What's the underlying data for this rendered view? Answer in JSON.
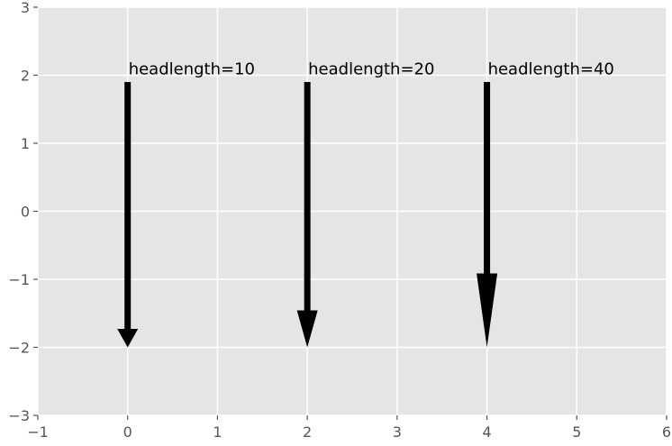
{
  "chart_data": {
    "type": "quiver",
    "title": "",
    "xlabel": "",
    "ylabel": "",
    "xlim": [
      -1,
      6
    ],
    "ylim": [
      -3,
      3
    ],
    "xticks": [
      -1,
      0,
      1,
      2,
      3,
      4,
      5,
      6
    ],
    "yticks": [
      -3,
      -2,
      -1,
      0,
      1,
      2,
      3
    ],
    "xtick_labels": [
      "−1",
      "0",
      "1",
      "2",
      "3",
      "4",
      "5",
      "6"
    ],
    "ytick_labels": [
      "−3",
      "−2",
      "−1",
      "0",
      "1",
      "2",
      "3"
    ],
    "grid": true,
    "style": "ggplot",
    "arrows": [
      {
        "x": 0,
        "y_start": 1.9,
        "y_end": -2.0,
        "headlength": 10,
        "label": "headlength=10"
      },
      {
        "x": 2,
        "y_start": 1.9,
        "y_end": -2.0,
        "headlength": 20,
        "label": "headlength=20"
      },
      {
        "x": 4,
        "y_start": 1.9,
        "y_end": -2.0,
        "headlength": 40,
        "label": "headlength=40"
      }
    ]
  },
  "colors": {
    "plot_background": "#e5e5e5",
    "grid": "#ffffff",
    "arrow": "#000000",
    "tick_text": "#555555"
  }
}
